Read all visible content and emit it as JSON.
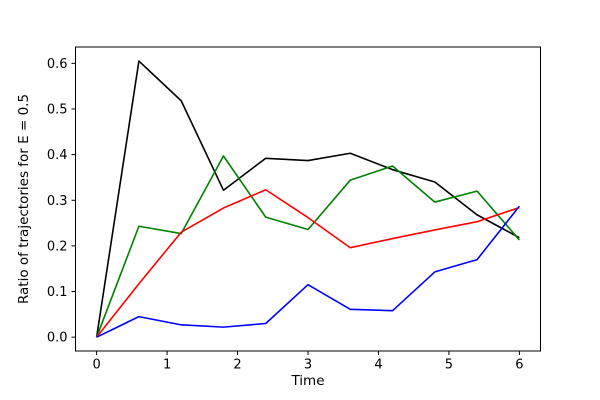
{
  "chart_data": {
    "type": "line",
    "title": "",
    "xlabel": "Time",
    "ylabel": "Ratio of trajectories for E = 0.5",
    "x": [
      0,
      0.6,
      1.2,
      1.8,
      2.4,
      3.0,
      3.6,
      4.2,
      4.8,
      5.4,
      6.0
    ],
    "series": [
      {
        "name": "black-line",
        "color": "#000000",
        "values": [
          0.0,
          0.605,
          0.518,
          0.322,
          0.392,
          0.387,
          0.403,
          0.367,
          0.34,
          0.268,
          0.218
        ]
      },
      {
        "name": "green-line",
        "color": "#008000",
        "values": [
          0.0,
          0.243,
          0.227,
          0.397,
          0.263,
          0.236,
          0.344,
          0.375,
          0.296,
          0.32,
          0.213
        ]
      },
      {
        "name": "red-line",
        "color": "#ff0000",
        "values": [
          0.0,
          0.117,
          0.23,
          0.283,
          0.323,
          0.262,
          0.196,
          0.216,
          0.235,
          0.253,
          0.284
        ]
      },
      {
        "name": "blue-line",
        "color": "#0000ff",
        "values": [
          0.0,
          0.045,
          0.027,
          0.022,
          0.03,
          0.115,
          0.061,
          0.058,
          0.143,
          0.17,
          0.287
        ]
      }
    ],
    "xticks": [
      0,
      1,
      2,
      3,
      4,
      5,
      6
    ],
    "yticks": [
      0.0,
      0.1,
      0.2,
      0.3,
      0.4,
      0.5,
      0.6
    ],
    "xlim": [
      -0.3,
      6.3
    ],
    "ylim": [
      -0.0303,
      0.6358
    ],
    "grid": false,
    "legend": null,
    "frame": "full-box",
    "axis_color": "#000000",
    "background_color": "#ffffff"
  }
}
